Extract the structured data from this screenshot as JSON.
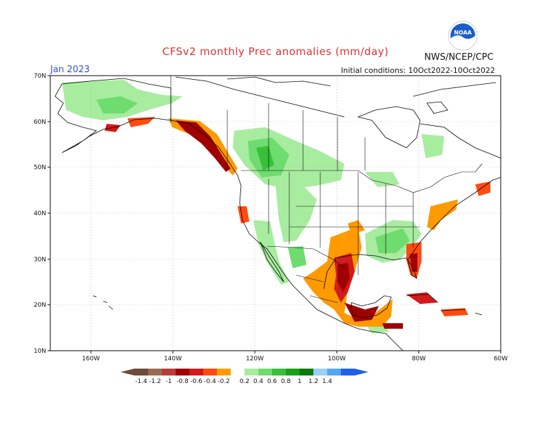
{
  "header": {
    "title": "CFSv2 monthly Prec anomalies (mm/day)",
    "agency": "NWS/NCEP/CPC",
    "month": "Jan 2023",
    "initial_conditions": "Initial conditions: 10Oct2022-10Oct2022",
    "logo_text": "NOAA"
  },
  "axes": {
    "lat_labels": [
      "70N",
      "60N",
      "50N",
      "40N",
      "30N",
      "20N",
      "10N"
    ],
    "lon_labels": [
      "160W",
      "140W",
      "120W",
      "100W",
      "80W",
      "60W"
    ]
  },
  "colorbar": {
    "labels": [
      "-1.4",
      "-1.2",
      "-1",
      "-0.8",
      "-0.6",
      "-0.4",
      "-0.2",
      "0.2",
      "0.4",
      "0.6",
      "0.8",
      "1",
      "1.2",
      "1.4"
    ],
    "colors": [
      "#6e4a3a",
      "#9a6a52",
      "#bb3a3a",
      "#a00000",
      "#d21a1a",
      "#ff4a10",
      "#ff9a00",
      "#ffffff",
      "#a8eca0",
      "#6edc6e",
      "#38c038",
      "#18a018",
      "#0a7a0a",
      "#98d0f8",
      "#50a8f0",
      "#2060e8"
    ],
    "end_low_color": "#6e4a3a",
    "end_high_color": "#2060e8"
  },
  "colors": {
    "dry_light": "#ff9a00",
    "dry_mid": "#ff4a10",
    "dry_strong": "#a00000",
    "wet_light": "#a8eca0",
    "wet_mid": "#6edc6e",
    "wet_strong": "#38c038"
  }
}
